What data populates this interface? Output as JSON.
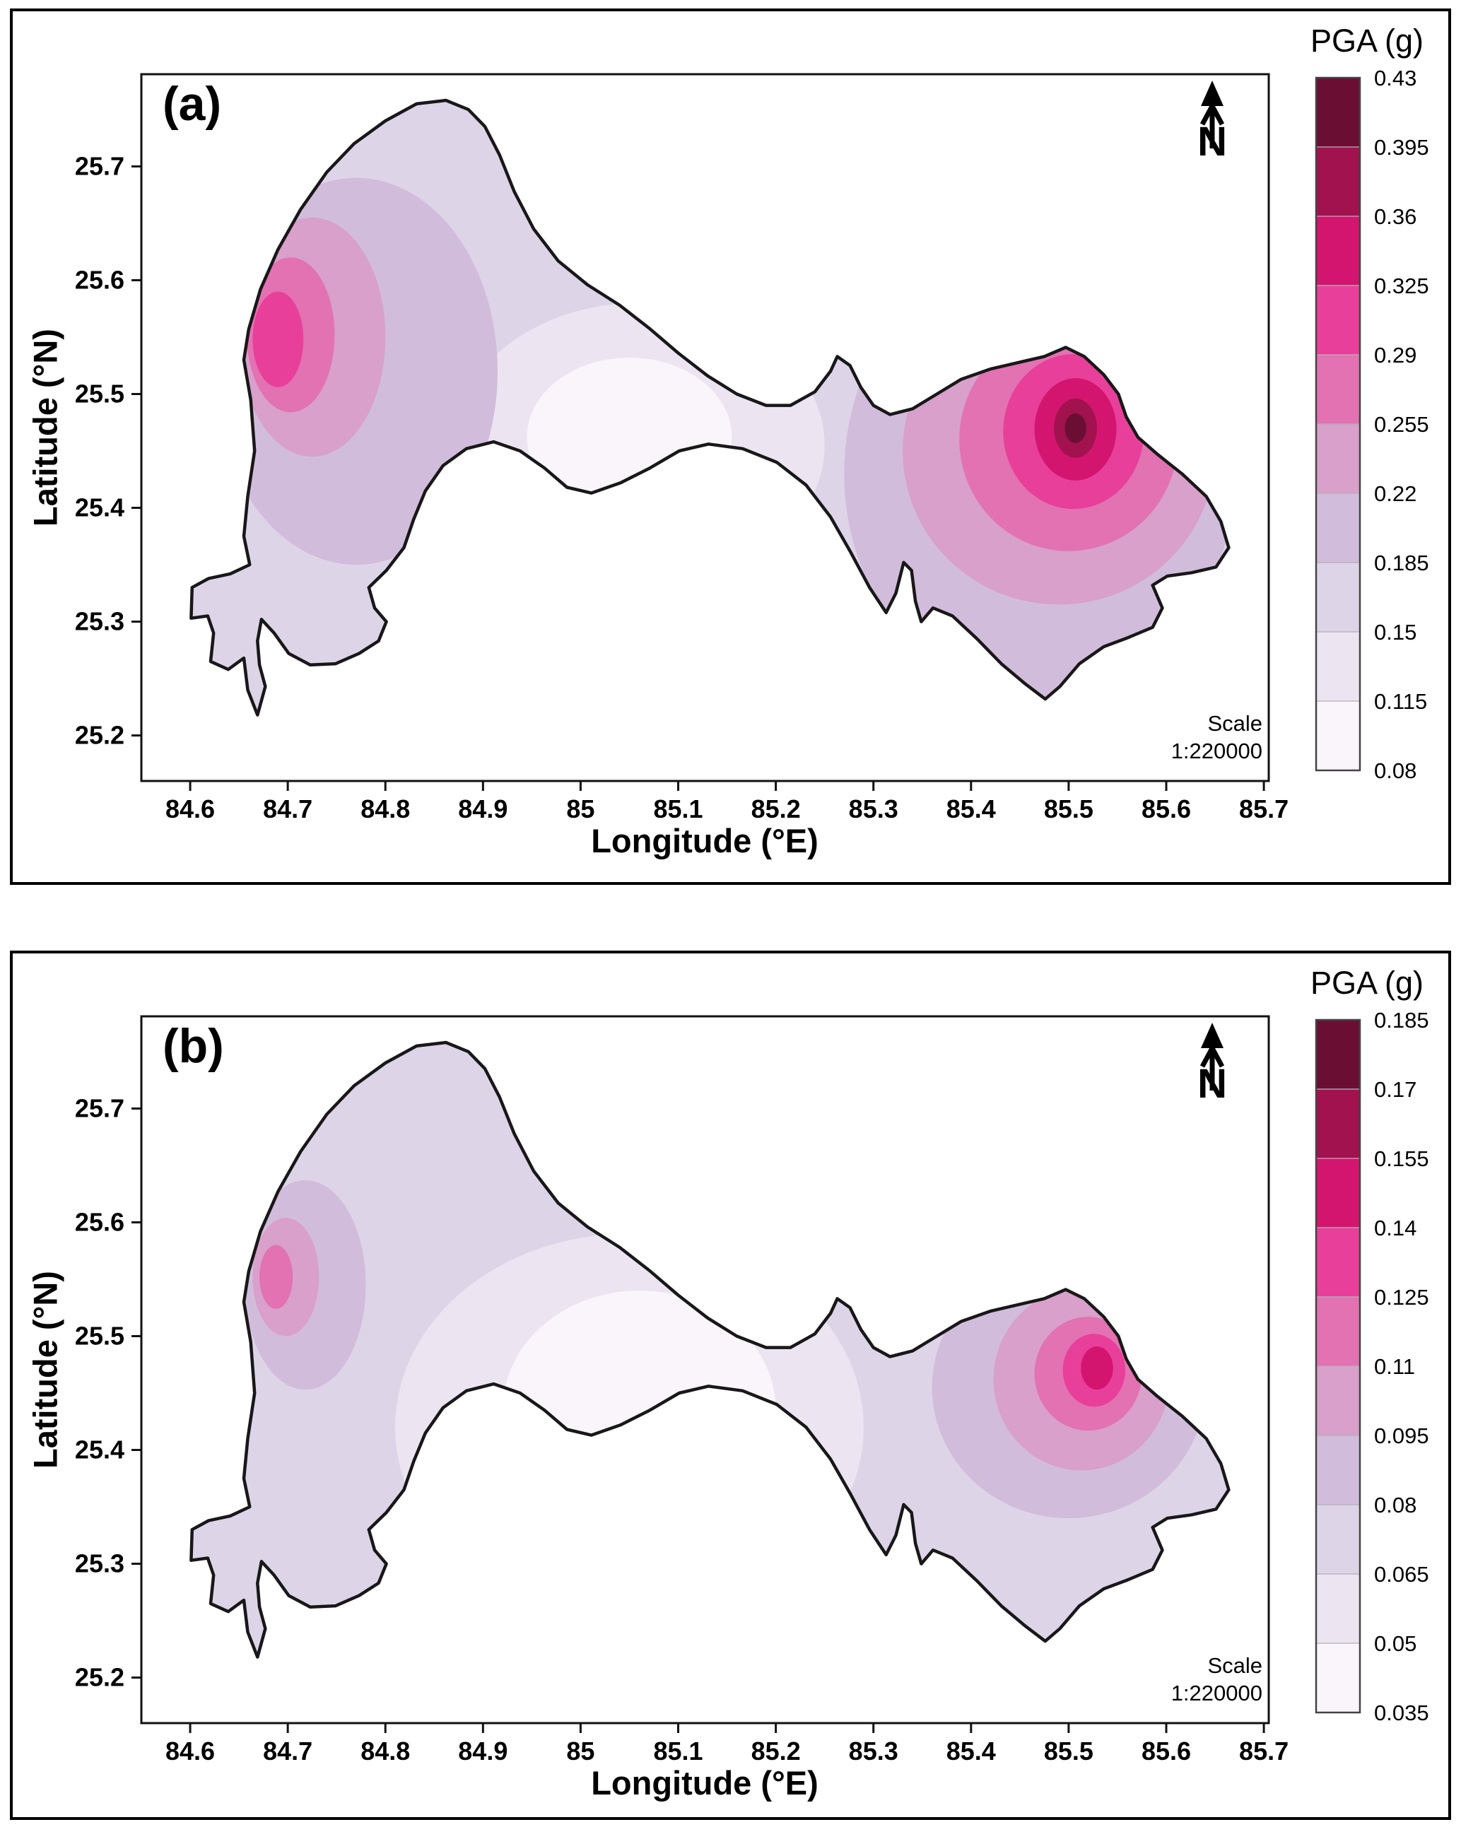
{
  "district_boundary_lonlat": [
    [
      84.662,
      25.495
    ],
    [
      84.655,
      25.53
    ],
    [
      84.66,
      25.557
    ],
    [
      84.672,
      25.592
    ],
    [
      84.69,
      25.627
    ],
    [
      84.713,
      25.662
    ],
    [
      84.74,
      25.695
    ],
    [
      84.768,
      25.72
    ],
    [
      84.8,
      25.74
    ],
    [
      84.832,
      25.755
    ],
    [
      84.862,
      25.758
    ],
    [
      84.885,
      25.75
    ],
    [
      84.902,
      25.735
    ],
    [
      84.917,
      25.71
    ],
    [
      84.932,
      25.678
    ],
    [
      84.952,
      25.645
    ],
    [
      84.977,
      25.617
    ],
    [
      85.007,
      25.596
    ],
    [
      85.04,
      25.578
    ],
    [
      85.07,
      25.558
    ],
    [
      85.1,
      25.536
    ],
    [
      85.13,
      25.516
    ],
    [
      85.16,
      25.5
    ],
    [
      85.19,
      25.49
    ],
    [
      85.215,
      25.49
    ],
    [
      85.24,
      25.502
    ],
    [
      85.256,
      25.52
    ],
    [
      85.263,
      25.533
    ],
    [
      85.276,
      25.525
    ],
    [
      85.287,
      25.506
    ],
    [
      85.3,
      25.49
    ],
    [
      85.317,
      25.482
    ],
    [
      85.34,
      25.487
    ],
    [
      85.365,
      25.5
    ],
    [
      85.39,
      25.513
    ],
    [
      85.42,
      25.522
    ],
    [
      85.45,
      25.528
    ],
    [
      85.475,
      25.533
    ],
    [
      85.497,
      25.541
    ],
    [
      85.516,
      25.533
    ],
    [
      85.536,
      25.517
    ],
    [
      85.551,
      25.5
    ],
    [
      85.559,
      25.48
    ],
    [
      85.571,
      25.462
    ],
    [
      85.591,
      25.447
    ],
    [
      85.616,
      25.43
    ],
    [
      85.641,
      25.41
    ],
    [
      85.656,
      25.388
    ],
    [
      85.664,
      25.365
    ],
    [
      85.651,
      25.348
    ],
    [
      85.626,
      25.343
    ],
    [
      85.601,
      25.34
    ],
    [
      85.586,
      25.332
    ],
    [
      85.596,
      25.312
    ],
    [
      85.586,
      25.295
    ],
    [
      85.561,
      25.286
    ],
    [
      85.536,
      25.278
    ],
    [
      85.511,
      25.263
    ],
    [
      85.491,
      25.243
    ],
    [
      85.476,
      25.232
    ],
    [
      85.456,
      25.245
    ],
    [
      85.431,
      25.263
    ],
    [
      85.406,
      25.285
    ],
    [
      85.381,
      25.305
    ],
    [
      85.361,
      25.312
    ],
    [
      85.349,
      25.3
    ],
    [
      85.343,
      25.318
    ],
    [
      85.339,
      25.345
    ],
    [
      85.331,
      25.352
    ],
    [
      85.323,
      25.325
    ],
    [
      85.313,
      25.308
    ],
    [
      85.296,
      25.33
    ],
    [
      85.276,
      25.362
    ],
    [
      85.256,
      25.392
    ],
    [
      85.231,
      25.42
    ],
    [
      85.201,
      25.44
    ],
    [
      85.166,
      25.452
    ],
    [
      85.131,
      25.456
    ],
    [
      85.101,
      25.45
    ],
    [
      85.071,
      25.435
    ],
    [
      85.041,
      25.422
    ],
    [
      85.011,
      25.413
    ],
    [
      84.986,
      25.418
    ],
    [
      84.963,
      25.435
    ],
    [
      84.938,
      25.45
    ],
    [
      84.911,
      25.458
    ],
    [
      84.883,
      25.452
    ],
    [
      84.859,
      25.437
    ],
    [
      84.841,
      25.415
    ],
    [
      84.829,
      25.39
    ],
    [
      84.819,
      25.365
    ],
    [
      84.801,
      25.345
    ],
    [
      84.783,
      25.33
    ],
    [
      84.789,
      25.312
    ],
    [
      84.801,
      25.3
    ],
    [
      84.793,
      25.283
    ],
    [
      84.773,
      25.272
    ],
    [
      84.749,
      25.263
    ],
    [
      84.723,
      25.262
    ],
    [
      84.701,
      25.272
    ],
    [
      84.686,
      25.29
    ],
    [
      84.673,
      25.302
    ],
    [
      84.669,
      25.283
    ],
    [
      84.671,
      25.262
    ],
    [
      84.677,
      25.243
    ],
    [
      84.669,
      25.218
    ],
    [
      84.659,
      25.24
    ],
    [
      84.655,
      25.268
    ],
    [
      84.639,
      25.258
    ],
    [
      84.621,
      25.265
    ],
    [
      84.624,
      25.29
    ],
    [
      84.618,
      25.305
    ],
    [
      84.601,
      25.303
    ],
    [
      84.602,
      25.33
    ],
    [
      84.619,
      25.338
    ],
    [
      84.641,
      25.342
    ],
    [
      84.661,
      25.35
    ],
    [
      84.655,
      25.375
    ],
    [
      84.659,
      25.41
    ],
    [
      84.666,
      25.45
    ]
  ],
  "chart_data": [
    {
      "type": "heatmap",
      "subtype": "filled-contour-map",
      "panel_label": "(a)",
      "colorbar_title": "PGA (g)",
      "xlabel": "Longitude (°E)",
      "ylabel": "Latitude (°N)",
      "x_tick_labels": [
        "84.6",
        "84.7",
        "84.8",
        "84.9",
        "85",
        "85.1",
        "85.2",
        "85.3",
        "85.4",
        "85.5",
        "85.6",
        "85.7"
      ],
      "x_tick_values": [
        84.6,
        84.7,
        84.8,
        84.9,
        85.0,
        85.1,
        85.2,
        85.3,
        85.4,
        85.5,
        85.6,
        85.7
      ],
      "y_tick_labels": [
        "25.2",
        "25.3",
        "25.4",
        "25.5",
        "25.6",
        "25.7"
      ],
      "y_tick_values": [
        25.2,
        25.3,
        25.4,
        25.5,
        25.6,
        25.7
      ],
      "xlim": [
        84.55,
        85.705
      ],
      "ylim": [
        25.16,
        25.781
      ],
      "legend_levels": [
        "0.08",
        "0.115",
        "0.15",
        "0.185",
        "0.22",
        "0.255",
        "0.29",
        "0.325",
        "0.36",
        "0.395",
        "0.43"
      ],
      "band_colors": [
        "#faf5fa",
        "#ece5f1",
        "#ded4e8",
        "#d2bcdb",
        "#d8a0ca",
        "#e272b2",
        "#e83f9a",
        "#d4156f",
        "#a2124e",
        "#6a0f33"
      ],
      "scale_lines": [
        "Scale",
        "1:220000"
      ],
      "north_label": "N",
      "regions": [
        {
          "band": 2,
          "shape": "base"
        },
        {
          "band": 1,
          "shape": "ellipse",
          "e": [
            85.06,
            25.455,
            0.19,
            0.125
          ]
        },
        {
          "band": 0,
          "shape": "ellipse",
          "e": [
            85.05,
            25.462,
            0.105,
            0.07
          ]
        },
        {
          "band": 3,
          "shape": "ellipse",
          "e": [
            84.77,
            25.52,
            0.145,
            0.17
          ]
        },
        {
          "band": 4,
          "shape": "ellipse",
          "e": [
            84.725,
            25.55,
            0.075,
            0.105
          ]
        },
        {
          "band": 5,
          "shape": "ellipse",
          "e": [
            84.703,
            25.552,
            0.045,
            0.068
          ]
        },
        {
          "band": 6,
          "shape": "ellipse",
          "e": [
            84.69,
            25.548,
            0.026,
            0.042
          ]
        },
        {
          "band": 3,
          "shape": "ellipse",
          "e": [
            85.47,
            25.43,
            0.2,
            0.2
          ]
        },
        {
          "band": 4,
          "shape": "ellipse",
          "e": [
            85.49,
            25.45,
            0.16,
            0.135
          ]
        },
        {
          "band": 5,
          "shape": "ellipse",
          "e": [
            85.5,
            25.46,
            0.112,
            0.098
          ]
        },
        {
          "band": 6,
          "shape": "ellipse",
          "e": [
            85.505,
            25.467,
            0.072,
            0.068
          ]
        },
        {
          "band": 7,
          "shape": "ellipse",
          "e": [
            85.507,
            25.469,
            0.042,
            0.045
          ]
        },
        {
          "band": 8,
          "shape": "ellipse",
          "e": [
            85.507,
            25.47,
            0.022,
            0.026
          ]
        },
        {
          "band": 9,
          "shape": "ellipse",
          "e": [
            85.507,
            25.47,
            0.011,
            0.013
          ]
        }
      ],
      "hotspots": [
        {
          "lon": 85.507,
          "lat": 25.47,
          "peak_band": "0.395–0.43"
        },
        {
          "lon": 84.69,
          "lat": 25.55,
          "peak_band": "0.29–0.325"
        }
      ]
    },
    {
      "type": "heatmap",
      "subtype": "filled-contour-map",
      "panel_label": "(b)",
      "colorbar_title": "PGA (g)",
      "xlabel": "Longitude (°E)",
      "ylabel": "Latitude (°N)",
      "x_tick_labels": [
        "84.6",
        "84.7",
        "84.8",
        "84.9",
        "85",
        "85.1",
        "85.2",
        "85.3",
        "85.4",
        "85.5",
        "85.6",
        "85.7"
      ],
      "x_tick_values": [
        84.6,
        84.7,
        84.8,
        84.9,
        85.0,
        85.1,
        85.2,
        85.3,
        85.4,
        85.5,
        85.6,
        85.7
      ],
      "y_tick_labels": [
        "25.2",
        "25.3",
        "25.4",
        "25.5",
        "25.6",
        "25.7"
      ],
      "y_tick_values": [
        25.2,
        25.3,
        25.4,
        25.5,
        25.6,
        25.7
      ],
      "xlim": [
        84.55,
        85.705
      ],
      "ylim": [
        25.16,
        25.781
      ],
      "legend_levels": [
        "0.035",
        "0.05",
        "0.065",
        "0.08",
        "0.095",
        "0.11",
        "0.125",
        "0.14",
        "0.155",
        "0.17",
        "0.185"
      ],
      "band_colors": [
        "#faf5fa",
        "#ece5f1",
        "#ded4e8",
        "#d2bcdb",
        "#d8a0ca",
        "#e272b2",
        "#e83f9a",
        "#d4156f",
        "#a2124e",
        "#6a0f33"
      ],
      "scale_lines": [
        "Scale",
        "1:220000"
      ],
      "north_label": "N",
      "regions": [
        {
          "band": 2,
          "shape": "base"
        },
        {
          "band": 1,
          "shape": "ellipse",
          "e": [
            85.05,
            25.42,
            0.24,
            0.17
          ]
        },
        {
          "band": 0,
          "shape": "ellipse",
          "e": [
            85.06,
            25.435,
            0.14,
            0.105
          ]
        },
        {
          "band": 3,
          "shape": "ellipse",
          "e": [
            84.718,
            25.545,
            0.062,
            0.092
          ]
        },
        {
          "band": 4,
          "shape": "ellipse",
          "e": [
            84.698,
            25.552,
            0.034,
            0.052
          ]
        },
        {
          "band": 5,
          "shape": "ellipse",
          "e": [
            84.688,
            25.552,
            0.017,
            0.028
          ]
        },
        {
          "band": 3,
          "shape": "ellipse",
          "e": [
            85.5,
            25.455,
            0.14,
            0.115
          ]
        },
        {
          "band": 4,
          "shape": "ellipse",
          "e": [
            85.513,
            25.462,
            0.09,
            0.08
          ]
        },
        {
          "band": 5,
          "shape": "ellipse",
          "e": [
            85.52,
            25.467,
            0.055,
            0.05
          ]
        },
        {
          "band": 6,
          "shape": "ellipse",
          "e": [
            85.526,
            25.47,
            0.032,
            0.032
          ]
        },
        {
          "band": 7,
          "shape": "ellipse",
          "e": [
            85.529,
            25.472,
            0.0165,
            0.019
          ]
        }
      ],
      "hotspots": [
        {
          "lon": 85.529,
          "lat": 25.472,
          "peak_band": "0.14–0.155"
        },
        {
          "lon": 84.69,
          "lat": 25.553,
          "peak_band": "0.11–0.125"
        }
      ]
    }
  ]
}
